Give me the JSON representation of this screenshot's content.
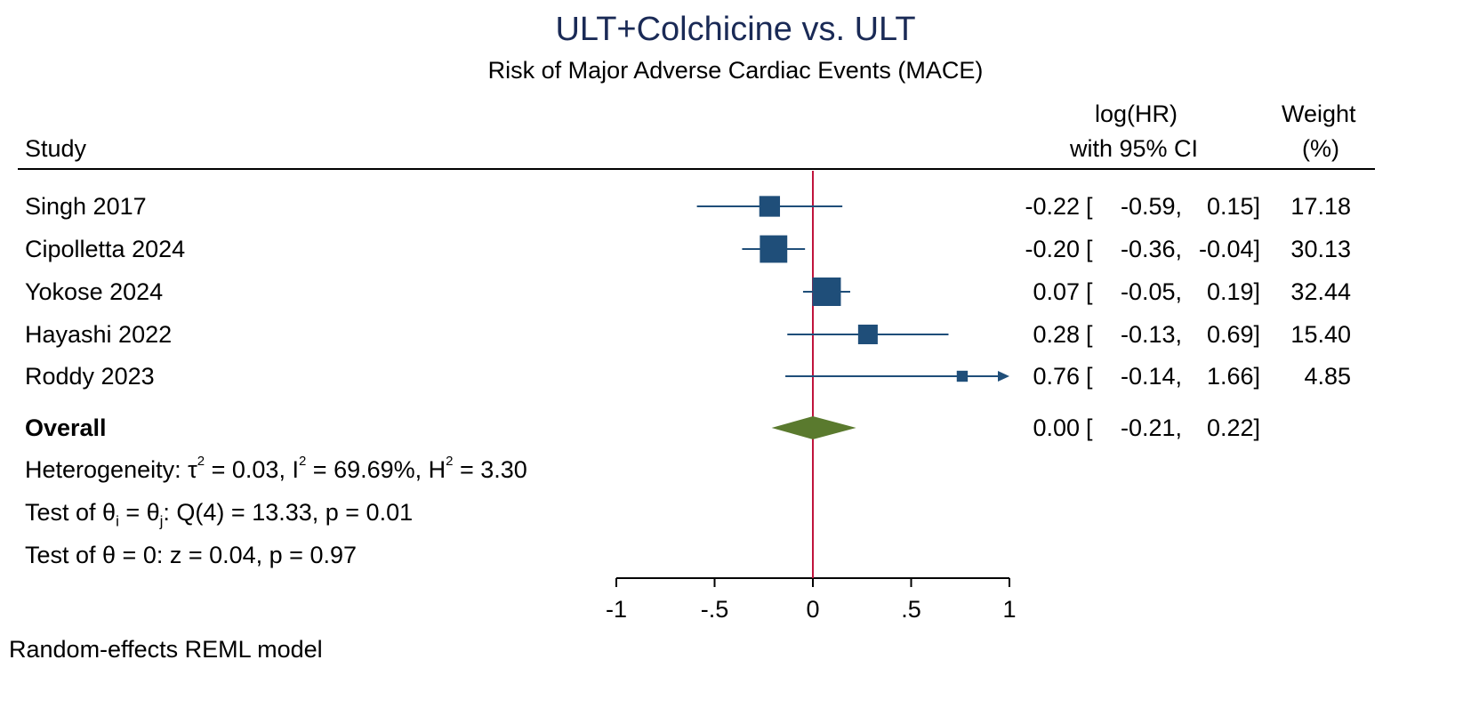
{
  "chart_data": {
    "type": "forest",
    "title": "ULT+Colchicine vs. ULT",
    "subtitle": "Risk of Major Adverse Cardiac Events (MACE)",
    "columns": {
      "study": "Study",
      "effect_line1": "log(HR)",
      "effect_line2": "with 95% CI",
      "weight_line1": "Weight",
      "weight_line2": "(%)"
    },
    "studies": [
      {
        "name": "Singh 2017",
        "est": -0.22,
        "lo": -0.59,
        "hi": 0.15,
        "est_text": "-0.22",
        "lo_text": "-0.59,",
        "hi_text": "0.15]",
        "weight": 17.18,
        "weight_text": "17.18",
        "arrow": false
      },
      {
        "name": "Cipolletta 2024",
        "est": -0.2,
        "lo": -0.36,
        "hi": -0.04,
        "est_text": "-0.20",
        "lo_text": "-0.36,",
        "hi_text": "-0.04]",
        "weight": 30.13,
        "weight_text": "30.13",
        "arrow": false
      },
      {
        "name": "Yokose 2024",
        "est": 0.07,
        "lo": -0.05,
        "hi": 0.19,
        "est_text": "0.07",
        "lo_text": "-0.05,",
        "hi_text": "0.19]",
        "weight": 32.44,
        "weight_text": "32.44",
        "arrow": false
      },
      {
        "name": "Hayashi 2022",
        "est": 0.28,
        "lo": -0.13,
        "hi": 0.69,
        "est_text": "0.28",
        "lo_text": "-0.13,",
        "hi_text": "0.69]",
        "weight": 15.4,
        "weight_text": "15.40",
        "arrow": false
      },
      {
        "name": "Roddy 2023",
        "est": 0.76,
        "lo": -0.14,
        "hi": 1.66,
        "est_text": "0.76",
        "lo_text": "-0.14,",
        "hi_text": "1.66]",
        "weight": 4.85,
        "weight_text": "4.85",
        "arrow": true
      }
    ],
    "overall": {
      "label": "Overall",
      "est": 0.0,
      "lo": -0.21,
      "hi": 0.22,
      "est_text": "0.00",
      "lo_text": "-0.21,",
      "hi_text": "0.22]"
    },
    "bracket_open": "[",
    "heterogeneity": {
      "prefix": "Heterogeneity: τ",
      "tau_sup": "2",
      "tau_val": " = 0.03, I",
      "i_sup": "2",
      "i_val": " = 69.69%, H",
      "h_sup": "2",
      "h_val": " = 3.30"
    },
    "test_homog": {
      "t1": "Test of θ",
      "s1": "i",
      "t2": " = θ",
      "s2": "j",
      "t3": ": Q(4) = 13.33, p = 0.01"
    },
    "test_zero": "Test of θ = 0: z = 0.04, p = 0.97",
    "x_axis": {
      "min": -1,
      "max": 1,
      "ticks": [
        -1,
        -0.5,
        0,
        0.5,
        1
      ],
      "tick_labels": [
        "-1",
        "-.5",
        "0",
        ".5",
        "1"
      ]
    },
    "null_line": 0,
    "footnote": "Random-effects REML model",
    "colors": {
      "marker": "#1f4e79",
      "overall": "#5a7a2e",
      "null_line": "#c0143c",
      "title": "#1a2a56"
    }
  }
}
